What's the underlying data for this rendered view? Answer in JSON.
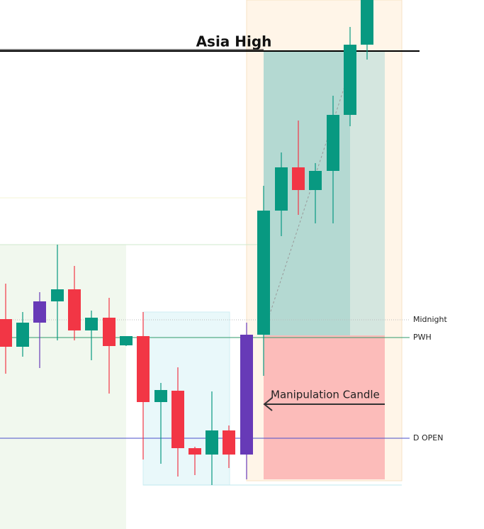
{
  "annotations": {
    "asia_high": "Asia High",
    "manipulation": "Manipulation Candle",
    "midnight": "Midnight",
    "pwh": "PWH",
    "d_open": "D OPEN"
  }
}
